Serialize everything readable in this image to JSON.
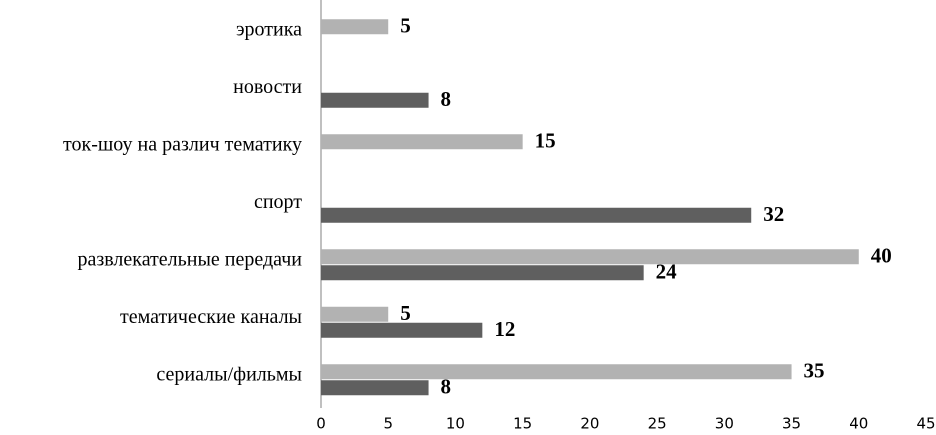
{
  "chart_data": {
    "type": "barh",
    "categories": [
      "эротика",
      "новости",
      "ток-шоу на различ тематику",
      "спорт",
      "развлекательные передачи",
      "тематические каналы",
      "сериалы/фильмы"
    ],
    "series": [
      {
        "color": "#b2b2b2",
        "values": [
          5,
          null,
          15,
          null,
          40,
          5,
          35
        ]
      },
      {
        "color": "#5f5f5f",
        "values": [
          null,
          8,
          null,
          32,
          24,
          12,
          8
        ]
      }
    ],
    "xlim": [
      0,
      45
    ],
    "xticks": [
      0,
      5,
      10,
      15,
      20,
      25,
      30,
      35,
      40,
      45
    ]
  }
}
